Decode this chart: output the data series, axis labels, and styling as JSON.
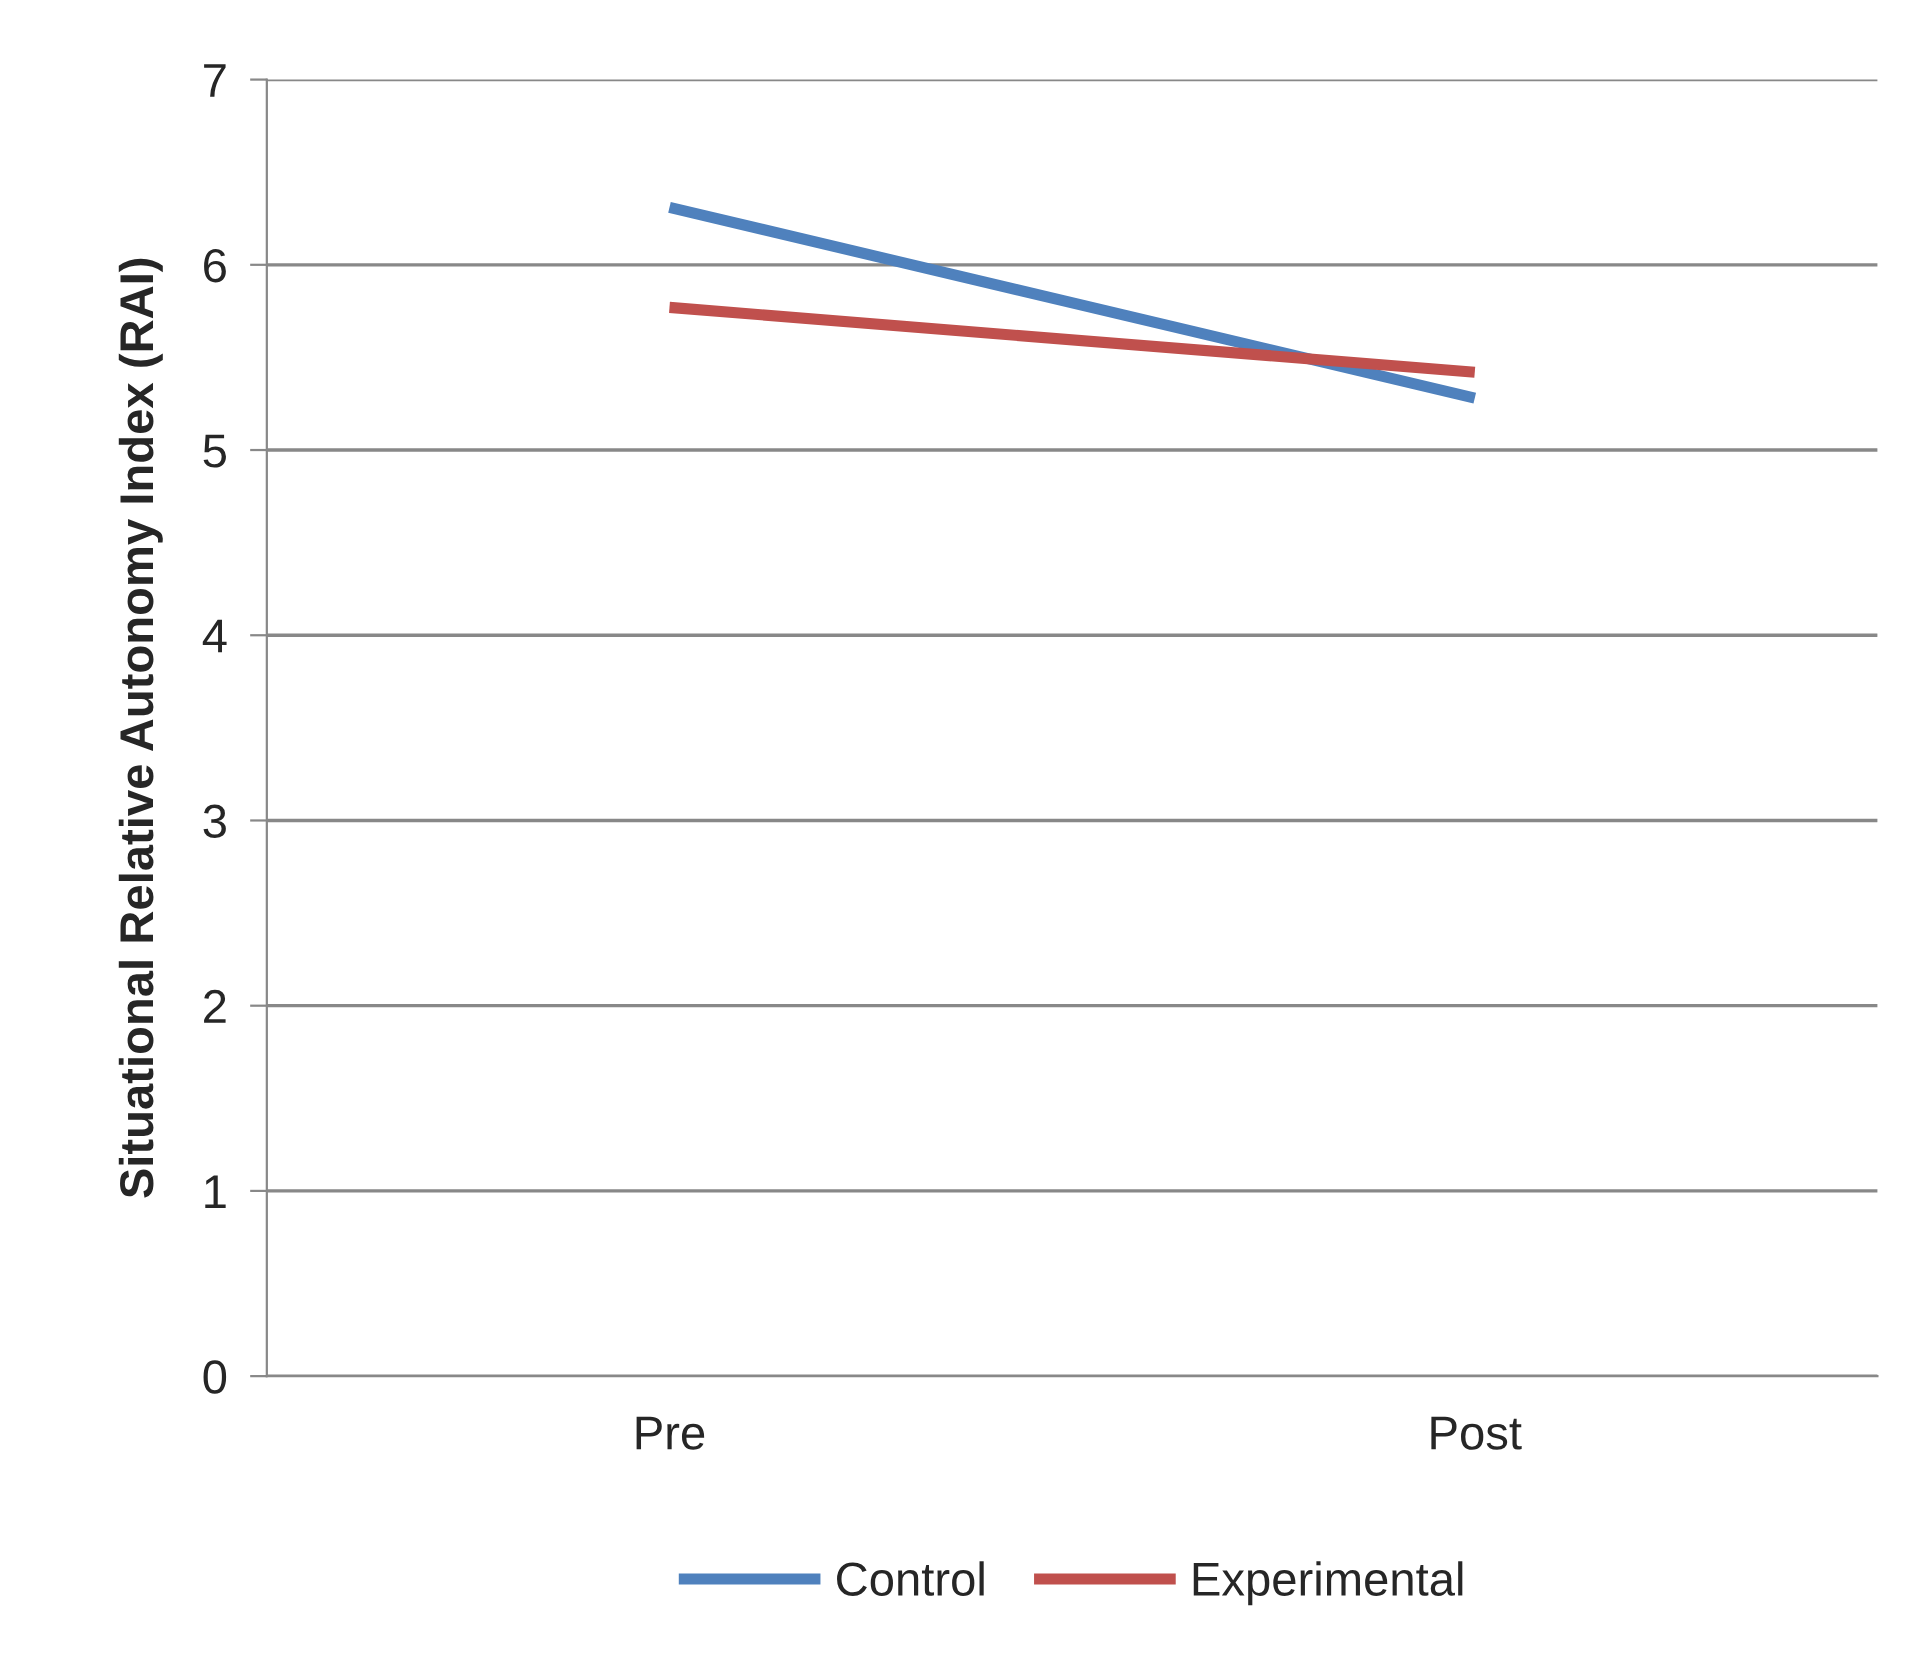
{
  "chart_data": {
    "type": "line",
    "ylabel": "Situational Relative Autonomy Index (RAI)",
    "categories": [
      "Pre",
      "Post"
    ],
    "series": [
      {
        "name": "Control",
        "color": "#4f81bd",
        "values": [
          6.31,
          5.28
        ]
      },
      {
        "name": "Experimental",
        "color": "#c0504d",
        "values": [
          5.77,
          5.42
        ]
      }
    ],
    "ylim": [
      0,
      7
    ],
    "yticks": [
      0,
      1,
      2,
      3,
      4,
      5,
      6,
      7
    ],
    "grid": "y",
    "legend": "bottom",
    "marker": "none",
    "line_style": "solid"
  }
}
